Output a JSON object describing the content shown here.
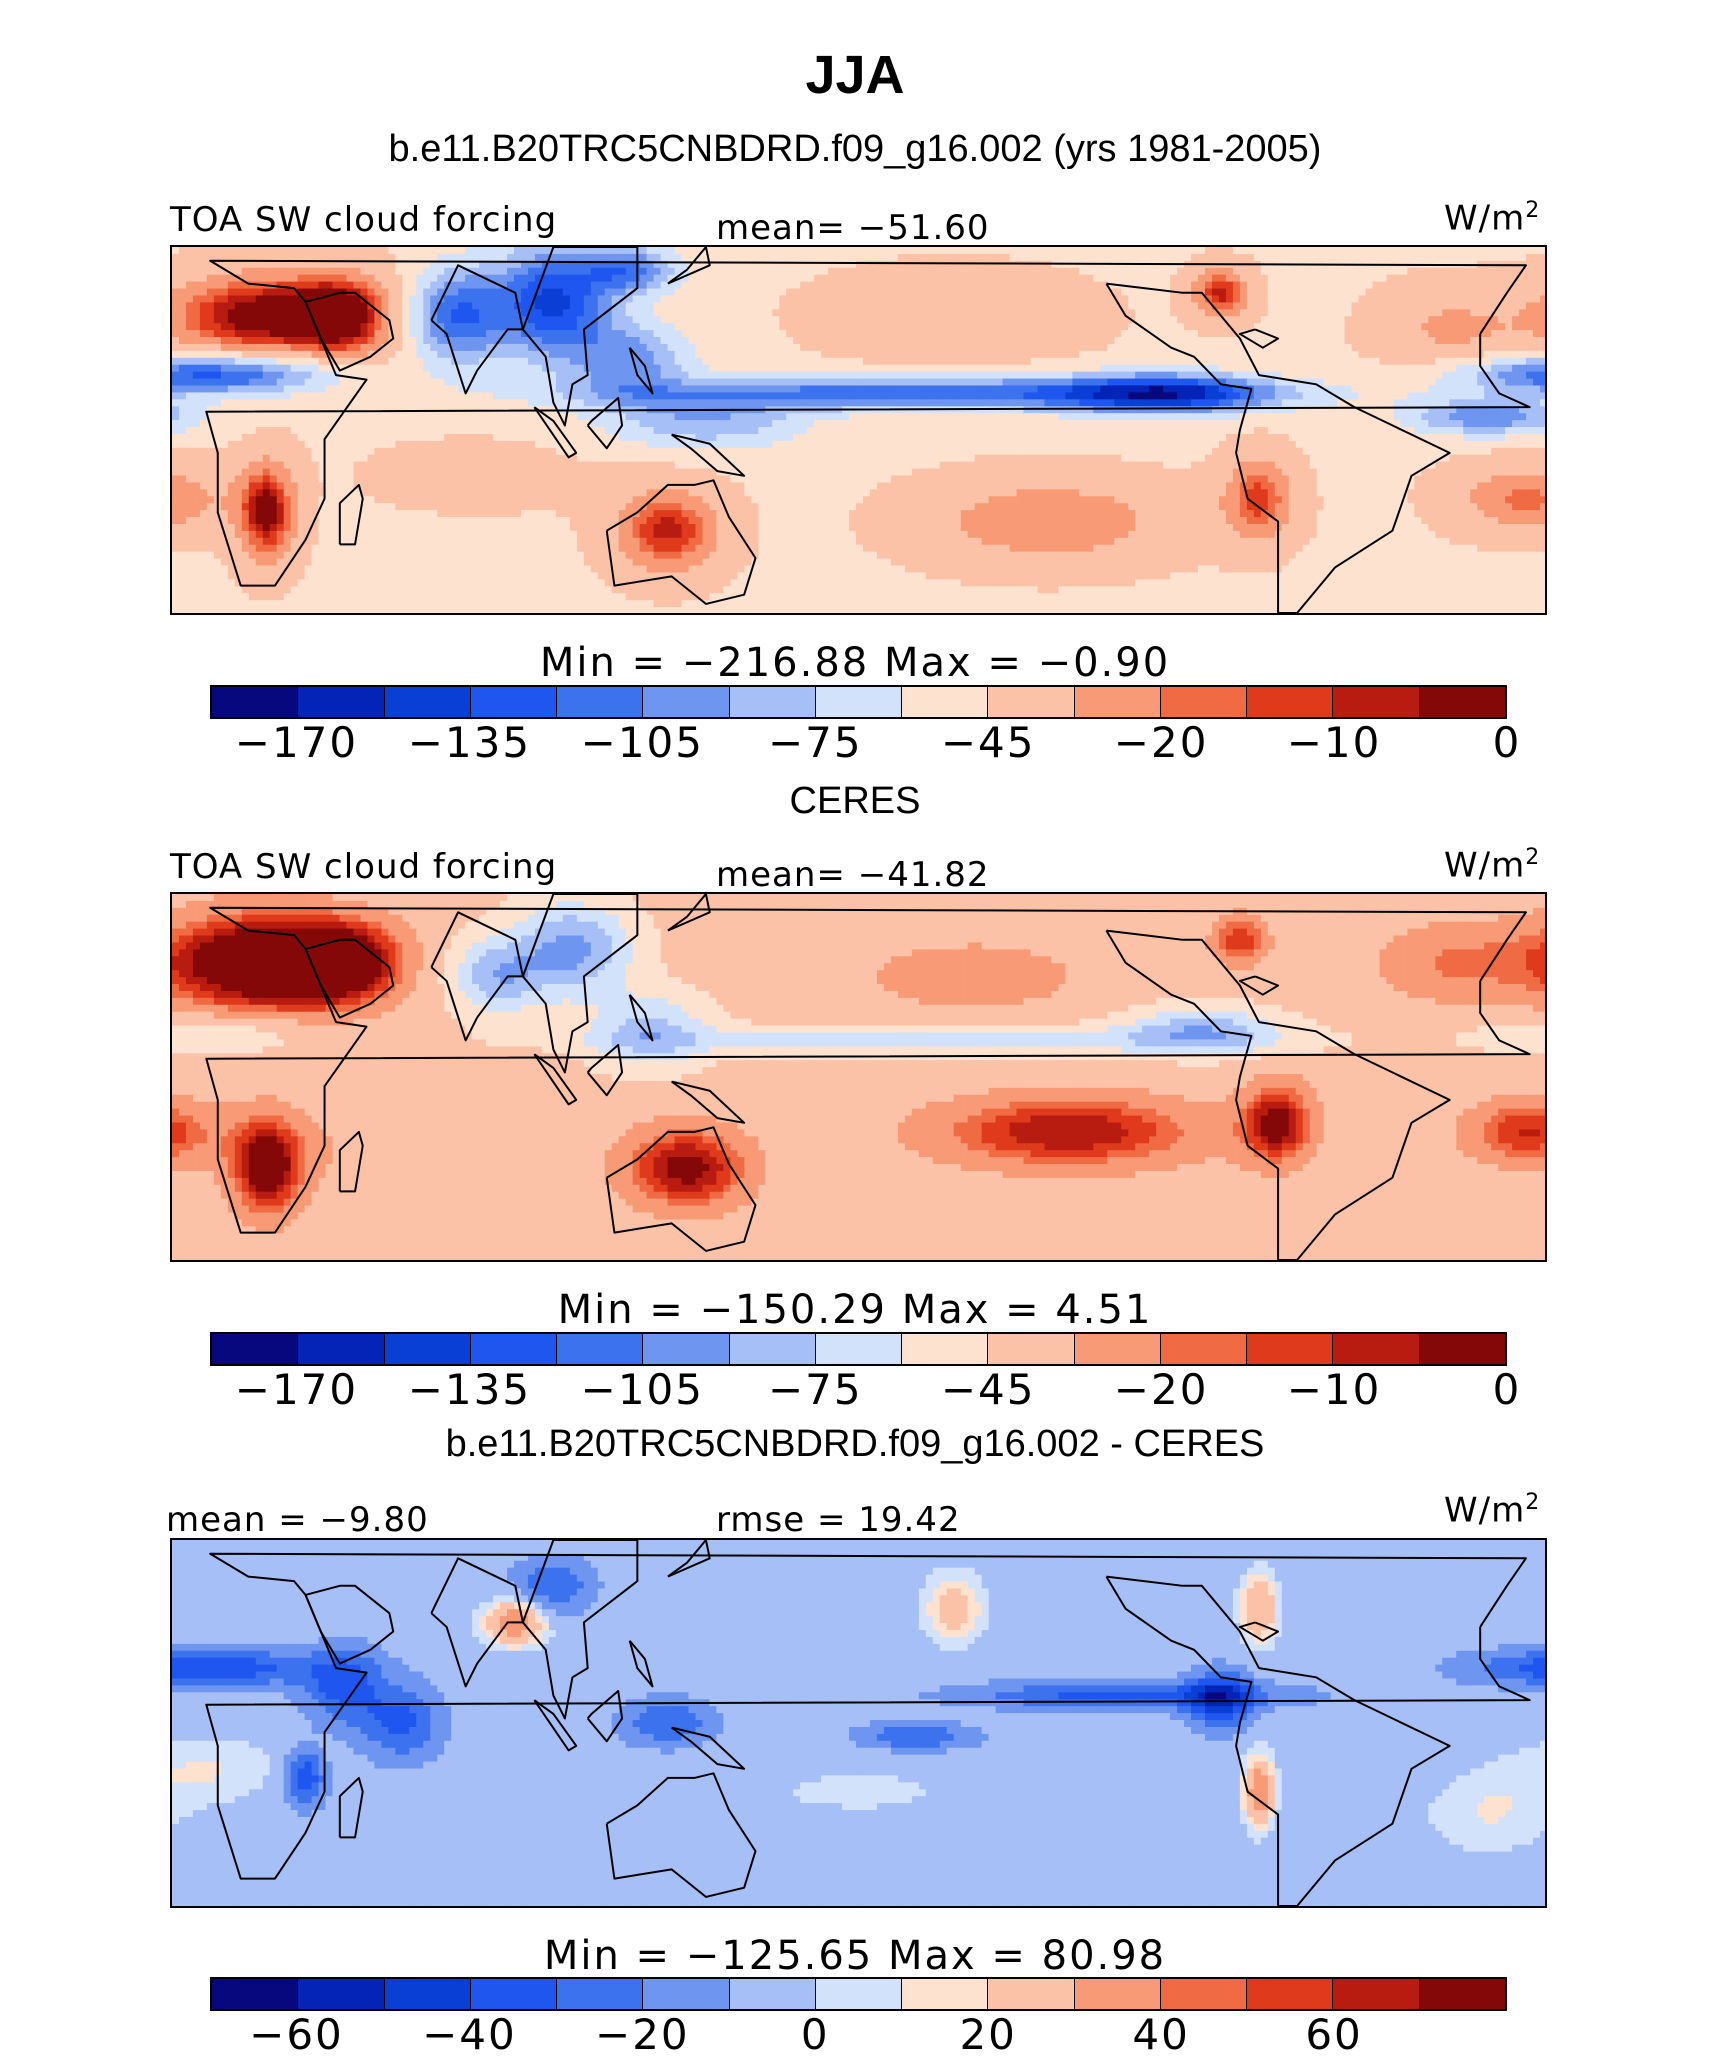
{
  "title": "JJA",
  "colors": {
    "blue_red_14": [
      "#08087e",
      "#0424b8",
      "#0a3fd6",
      "#1f56ef",
      "#3d72ee",
      "#6e95f0",
      "#a6bff6",
      "#d3e2fb",
      "#fde2d0",
      "#fbc2a8",
      "#f79a75",
      "#f06a43",
      "#df3a1c",
      "#b81c10",
      "#840808"
    ],
    "blue_red_diff": [
      "#08087e",
      "#0424b8",
      "#0a3fd6",
      "#1f56ef",
      "#3d72ee",
      "#6e95f0",
      "#a6bff6",
      "#d3e2fb",
      "#fde2d0",
      "#fbc2a8",
      "#f79a75",
      "#f06a43",
      "#df3a1c",
      "#b81c10",
      "#840808"
    ]
  },
  "panels": [
    {
      "section_title": "b.e11.B20TRC5CNBDRD.f09_g16.002 (yrs 1981-2005)",
      "left_label": "TOA SW cloud forcing",
      "center_label": "mean= −51.60",
      "units": "W/m",
      "units_sup": "2",
      "min_max": "Min = −216.88 Max = −0.90",
      "ticks": [
        "−170",
        "−135",
        "−105",
        "−75",
        "−45",
        "−20",
        "−10",
        "0"
      ],
      "field": "model"
    },
    {
      "section_title": "CERES",
      "left_label": "TOA SW cloud forcing",
      "center_label": "mean= −41.82",
      "units": "W/m",
      "units_sup": "2",
      "min_max": "Min = −150.29 Max = 4.51",
      "ticks": [
        "−170",
        "−135",
        "−105",
        "−75",
        "−45",
        "−20",
        "−10",
        "0"
      ],
      "field": "obs"
    },
    {
      "section_title": "b.e11.B20TRC5CNBDRD.f09_g16.002 - CERES",
      "left_label": "mean = −9.80",
      "center_label": "rmse = 19.42",
      "units": "W/m",
      "units_sup": "2",
      "min_max": "Min = −125.65 Max = 80.98",
      "ticks": [
        "−60",
        "−40",
        "−20",
        "0",
        "20",
        "40",
        "60"
      ],
      "field": "diff"
    }
  ]
}
